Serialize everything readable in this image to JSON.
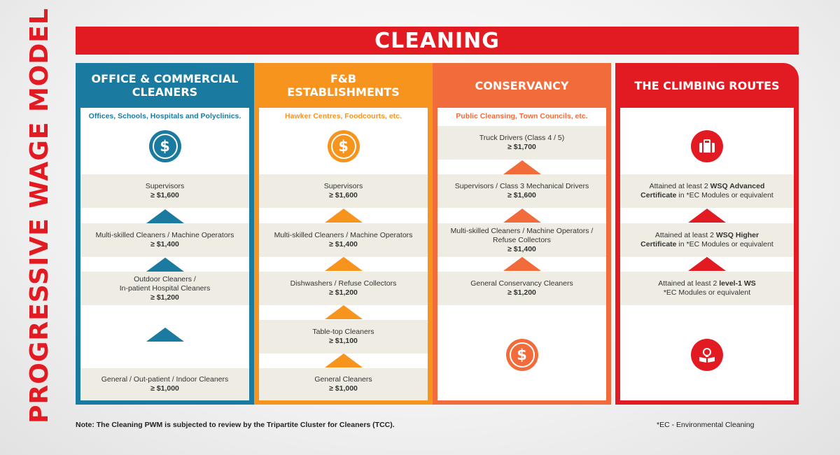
{
  "side_title": "PROGRESSIVE WAGE MODEL",
  "banner": "CLEANING",
  "colors": {
    "office": "#1a7aa0",
    "fnb": "#f7941d",
    "conservancy": "#f26b3a",
    "climbing": "#e21b23"
  },
  "columns": {
    "office": {
      "title": "OFFICE & COMMERCIAL\nCLEANERS",
      "subtitle": "Offices, Schools, Hospitals and Polyclinics.",
      "icon": "dollar-icon",
      "jobs": [
        {
          "name": "Supervisors",
          "wage": "≥ $1,600"
        },
        {
          "name": "Multi-skilled Cleaners / Machine Operators",
          "wage": "≥ $1,400"
        },
        {
          "name": "Outdoor Cleaners /\nIn-patient Hospital Cleaners",
          "wage": "≥ $1,200"
        },
        {
          "name": "General / Out-patient / Indoor Cleaners",
          "wage": "≥ $1,000"
        }
      ]
    },
    "fnb": {
      "title": "F&B\nESTABLISHMENTS",
      "subtitle": "Hawker Centres, Foodcourts, etc.",
      "icon": "dollar-icon",
      "jobs": [
        {
          "name": "Supervisors",
          "wage": "≥ $1,600"
        },
        {
          "name": "Multi-skilled Cleaners / Machine Operators",
          "wage": "≥ $1,400"
        },
        {
          "name": "Dishwashers / Refuse Collectors",
          "wage": "≥ $1,200"
        },
        {
          "name": "Table-top Cleaners",
          "wage": "≥ $1,100"
        },
        {
          "name": "General Cleaners",
          "wage": "≥ $1,000"
        }
      ]
    },
    "conservancy": {
      "title": "CONSERVANCY",
      "subtitle": "Public Cleansing, Town Councils, etc.",
      "icon": "dollar-icon",
      "jobs": [
        {
          "name": "Truck Drivers (Class 4 / 5)",
          "wage": "≥ $1,700"
        },
        {
          "name": "Supervisors / Class 3 Mechanical Drivers",
          "wage": "≥ $1,600"
        },
        {
          "name": "Multi-skilled Cleaners / Machine Operators /\nRefuse Collectors",
          "wage": "≥ $1,400"
        },
        {
          "name": "General Conservancy Cleaners",
          "wage": "≥ $1,200"
        }
      ]
    },
    "climbing": {
      "title": "THE CLIMBING ROUTES",
      "icon_top": "briefcase-icon",
      "icon_bottom": "book-lightbulb-icon",
      "routes": [
        {
          "pre": "Attained at least 2 ",
          "bold": "WSQ Advanced",
          "line2_bold": "Certificate",
          "post": " in *EC Modules or equivalent"
        },
        {
          "pre": "Attained at least 2 ",
          "bold": "WSQ Higher",
          "line2_bold": "Certificate",
          "post": " in *EC Modules or equivalent"
        },
        {
          "pre": "Attained at least 2 ",
          "bold": "level-1 WS",
          "line2_bold": "",
          "post": "*EC Modules or equivalent"
        }
      ]
    }
  },
  "note": "Note: The Cleaning PWM is subjected to review by the Tripartite Cluster for Cleaners (TCC).",
  "ec_note": "*EC - Environmental Cleaning"
}
